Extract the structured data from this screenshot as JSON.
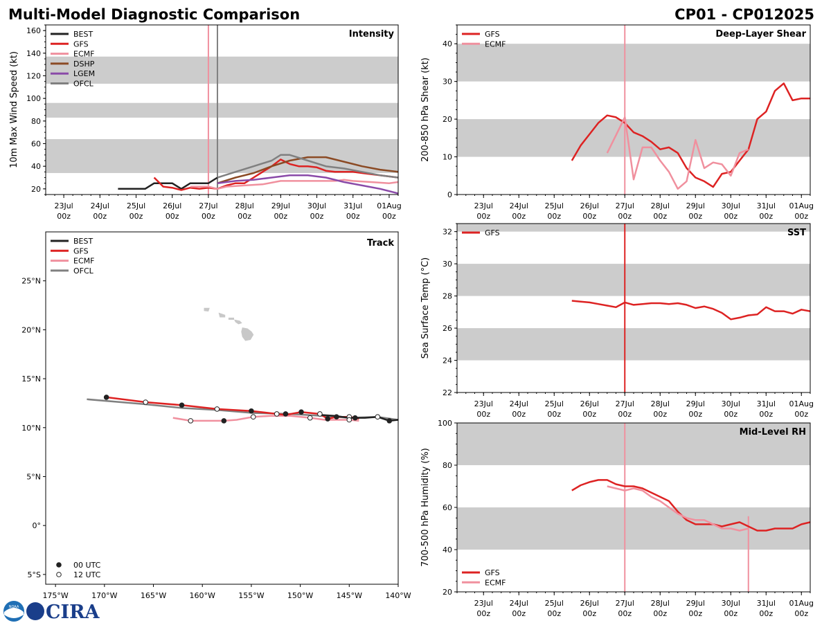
{
  "header": {
    "title": "Multi-Model Diagnostic Comparison",
    "storm_id": "CP01 - CP012025"
  },
  "logos": {
    "noaa": "NOAA",
    "cira": "CIRA"
  },
  "colors": {
    "BEST": "#222222",
    "GFS": "#dd2222",
    "ECMF": "#f0909e",
    "DSHP": "#8b4a24",
    "LGEM": "#8a4aa8",
    "OFCL": "#808080",
    "band": "#cccccc"
  },
  "time_axis": {
    "start": "23Jul 00z",
    "end": "01Aug 00z",
    "ticks": [
      {
        "day": 0,
        "label": "23Jul",
        "sub": "00z"
      },
      {
        "day": 1,
        "label": "24Jul",
        "sub": "00z"
      },
      {
        "day": 2,
        "label": "25Jul",
        "sub": "00z"
      },
      {
        "day": 3,
        "label": "26Jul",
        "sub": "00z"
      },
      {
        "day": 4,
        "label": "27Jul",
        "sub": "00z"
      },
      {
        "day": 5,
        "label": "28Jul",
        "sub": "00z"
      },
      {
        "day": 6,
        "label": "29Jul",
        "sub": "00z"
      },
      {
        "day": 7,
        "label": "30Jul",
        "sub": "00z"
      },
      {
        "day": 8,
        "label": "31Jul",
        "sub": "00z"
      },
      {
        "day": 9,
        "label": "01Aug",
        "sub": "00z"
      }
    ]
  },
  "chart_data": [
    {
      "id": "intensity",
      "type": "line",
      "title": "Intensity",
      "xlabel": "",
      "ylabel": "10m Max Wind Speed (kt)",
      "xlim": [
        -0.5,
        9.25
      ],
      "ylim": [
        15,
        165
      ],
      "yticks": [
        20,
        40,
        60,
        80,
        100,
        120,
        140,
        160
      ],
      "bands": [
        [
          34,
          64
        ],
        [
          83,
          96
        ],
        [
          113,
          137
        ]
      ],
      "vlines": [
        {
          "x": 4.0,
          "color": "ECMF"
        },
        {
          "x": 4.25,
          "color": "OFCL"
        }
      ],
      "legend": [
        "BEST",
        "GFS",
        "ECMF",
        "DSHP",
        "LGEM",
        "OFCL"
      ],
      "series": [
        {
          "name": "BEST",
          "x": [
            1.5,
            2.25,
            2.5,
            3.0,
            3.25,
            3.5,
            4.0,
            4.25
          ],
          "y": [
            20,
            20,
            25,
            25,
            20,
            25,
            25,
            30
          ]
        },
        {
          "name": "GFS",
          "x": [
            2.5,
            2.75,
            3.0,
            3.25,
            3.5,
            3.75,
            4.0,
            4.25,
            4.5,
            4.75,
            5.0,
            5.25,
            5.5,
            5.75,
            6.0,
            6.25,
            6.5,
            6.75,
            7.0,
            7.25,
            7.5,
            7.75,
            8.0,
            8.25,
            8.5,
            8.75,
            9.0,
            9.25
          ],
          "y": [
            30,
            22,
            21,
            19,
            21,
            20,
            21,
            20,
            23,
            25,
            25,
            30,
            35,
            40,
            46,
            42,
            40,
            40,
            39,
            36,
            35,
            35,
            35,
            34,
            33,
            32,
            31,
            30
          ]
        },
        {
          "name": "ECMF",
          "x": [
            3.5,
            4.0,
            4.25,
            4.5,
            5.0,
            5.5,
            6.0,
            6.5,
            7.0,
            7.25,
            7.5,
            7.75,
            8.0,
            8.5,
            9.0,
            9.25
          ],
          "y": [
            22,
            22,
            20,
            22,
            23,
            24,
            27,
            27,
            27,
            27,
            27,
            28,
            27,
            26,
            25,
            26
          ]
        },
        {
          "name": "DSHP",
          "x": [
            4.25,
            4.75,
            5.25,
            5.75,
            6.25,
            6.75,
            7.25,
            7.75,
            8.25,
            8.75,
            9.25
          ],
          "y": [
            25,
            30,
            34,
            40,
            45,
            48,
            48,
            44,
            40,
            37,
            35
          ]
        },
        {
          "name": "LGEM",
          "x": [
            4.25,
            4.75,
            5.25,
            5.75,
            6.25,
            6.75,
            7.25,
            7.75,
            8.25,
            8.75,
            9.25
          ],
          "y": [
            25,
            27,
            28,
            30,
            32,
            32,
            30,
            26,
            23,
            20,
            16
          ]
        },
        {
          "name": "OFCL",
          "x": [
            4.25,
            4.75,
            5.25,
            5.75,
            6.0,
            6.25,
            6.75,
            7.25,
            7.75,
            8.25,
            8.75,
            9.25
          ],
          "y": [
            30,
            35,
            40,
            45,
            50,
            50,
            45,
            40,
            38,
            35,
            32,
            30
          ]
        }
      ]
    },
    {
      "id": "shear",
      "type": "line",
      "title": "Deep-Layer Shear",
      "xlabel": "",
      "ylabel": "200-850 hPa Shear (kt)",
      "xlim": [
        -0.75,
        9.25
      ],
      "ylim": [
        0,
        45
      ],
      "yticks": [
        0,
        10,
        20,
        30,
        40
      ],
      "bands": [
        [
          10,
          20
        ],
        [
          30,
          40
        ]
      ],
      "vlines": [
        {
          "x": 4.0,
          "color": "ECMF"
        }
      ],
      "legend": [
        "GFS",
        "ECMF"
      ],
      "series": [
        {
          "name": "GFS",
          "x": [
            2.5,
            2.75,
            3.0,
            3.25,
            3.5,
            3.75,
            4.0,
            4.25,
            4.5,
            4.75,
            5.0,
            5.25,
            5.5,
            5.75,
            6.0,
            6.25,
            6.5,
            6.75,
            7.0,
            7.25,
            7.5,
            7.75,
            8.0,
            8.25,
            8.5,
            8.75,
            9.0,
            9.25
          ],
          "y": [
            9,
            13,
            16,
            19,
            21,
            20.5,
            19,
            16.5,
            15.5,
            14,
            12,
            12.5,
            11,
            7,
            4.5,
            3.5,
            2,
            5.5,
            6,
            9,
            12,
            20,
            22,
            27.5,
            29.5,
            25,
            25.5,
            25.5
          ]
        },
        {
          "name": "ECMF",
          "x": [
            3.5,
            4.0,
            4.25,
            4.5,
            4.75,
            5.0,
            5.25,
            5.5,
            5.75,
            6.0,
            6.25,
            6.5,
            6.75,
            7.0,
            7.25,
            7.5
          ],
          "y": [
            11,
            20.5,
            4,
            12.5,
            12.5,
            9,
            6,
            1.5,
            3.5,
            14.5,
            7,
            8.5,
            8,
            5,
            11,
            12
          ]
        }
      ]
    },
    {
      "id": "track",
      "type": "scatter",
      "title": "Track",
      "xlabel": "",
      "ylabel": "",
      "xlim": [
        -176,
        -140
      ],
      "ylim": [
        -6,
        30
      ],
      "xticks": [
        {
          "v": -175,
          "label": "175°W"
        },
        {
          "v": -170,
          "label": "170°W"
        },
        {
          "v": -165,
          "label": "165°W"
        },
        {
          "v": -160,
          "label": "160°W"
        },
        {
          "v": -155,
          "label": "155°W"
        },
        {
          "v": -150,
          "label": "150°W"
        },
        {
          "v": -145,
          "label": "145°W"
        },
        {
          "v": -140,
          "label": "140°W"
        }
      ],
      "yticks": [
        {
          "v": -5,
          "label": "5°S"
        },
        {
          "v": 0,
          "label": "0°"
        },
        {
          "v": 5,
          "label": "5°N"
        },
        {
          "v": 10,
          "label": "10°N"
        },
        {
          "v": 15,
          "label": "15°N"
        },
        {
          "v": 20,
          "label": "20°N"
        },
        {
          "v": 25,
          "label": "25°N"
        }
      ],
      "legend": [
        "BEST",
        "GFS",
        "ECMF",
        "OFCL"
      ],
      "marker_legend": [
        "00 UTC",
        "12 UTC"
      ],
      "series": [
        {
          "name": "BEST",
          "lon": [
            -140,
            -140.9,
            -142.1,
            -143.4,
            -145.0,
            -146.5,
            -148.0
          ],
          "lat": [
            10.8,
            10.7,
            11.1,
            11.0,
            11.0,
            11.2,
            11.3
          ]
        },
        {
          "name": "GFS",
          "lon": [
            -144.0,
            -144.4,
            -145.0,
            -146.3,
            -147.2,
            -148.0,
            -149.9,
            -151.5,
            -152.4,
            -155.0,
            -158.5,
            -162.1,
            -165.8,
            -169.8
          ],
          "lat": [
            10.9,
            11.0,
            11.1,
            11.1,
            10.9,
            11.4,
            11.6,
            11.3,
            11.4,
            11.7,
            11.9,
            12.3,
            12.6,
            13.1
          ]
        },
        {
          "name": "ECMF",
          "lon": [
            -144.0,
            -145.0,
            -146.3,
            -147.5,
            -149.0,
            -151.0,
            -153.0,
            -154.8,
            -156.5,
            -157.8,
            -159.5,
            -161.2,
            -163.0
          ],
          "lat": [
            10.7,
            10.8,
            10.8,
            10.8,
            11.0,
            11.2,
            11.2,
            11.1,
            10.8,
            10.7,
            10.7,
            10.7,
            11.0
          ]
        },
        {
          "name": "OFCL",
          "lon": [
            -140,
            -142.1,
            -145.0,
            -147.8,
            -151.0,
            -154.8,
            -158.5,
            -162.0,
            -166.0,
            -171.8
          ],
          "lat": [
            10.8,
            11.1,
            11.0,
            11.2,
            11.4,
            11.5,
            11.8,
            12.0,
            12.4,
            12.9
          ]
        }
      ],
      "markers": [
        {
          "lon": -169.8,
          "lat": 13.1,
          "type": "00 UTC"
        },
        {
          "lon": -165.8,
          "lat": 12.6,
          "type": "12 UTC"
        },
        {
          "lon": -162.1,
          "lat": 12.3,
          "type": "00 UTC"
        },
        {
          "lon": -158.5,
          "lat": 11.9,
          "type": "12 UTC"
        },
        {
          "lon": -155.0,
          "lat": 11.7,
          "type": "00 UTC"
        },
        {
          "lon": -152.4,
          "lat": 11.4,
          "type": "12 UTC"
        },
        {
          "lon": -151.5,
          "lat": 11.4,
          "type": "00 UTC"
        },
        {
          "lon": -149.9,
          "lat": 11.6,
          "type": "00 UTC"
        },
        {
          "lon": -148.0,
          "lat": 11.4,
          "type": "12 UTC"
        },
        {
          "lon": -146.3,
          "lat": 11.1,
          "type": "00 UTC"
        },
        {
          "lon": -145.0,
          "lat": 11.1,
          "type": "12 UTC"
        },
        {
          "lon": -144.4,
          "lat": 11.0,
          "type": "00 UTC"
        },
        {
          "lon": -142.1,
          "lat": 11.1,
          "type": "12 UTC"
        },
        {
          "lon": -140.9,
          "lat": 10.7,
          "type": "00 UTC"
        },
        {
          "lon": -161.2,
          "lat": 10.7,
          "type": "12 UTC"
        },
        {
          "lon": -157.8,
          "lat": 10.7,
          "type": "00 UTC"
        },
        {
          "lon": -154.8,
          "lat": 11.1,
          "type": "12 UTC"
        },
        {
          "lon": -149.0,
          "lat": 11.0,
          "type": "12 UTC"
        },
        {
          "lon": -147.2,
          "lat": 10.9,
          "type": "00 UTC"
        },
        {
          "lon": -145.0,
          "lat": 10.8,
          "type": "12 UTC"
        }
      ],
      "land": [
        {
          "name": "Hawaii",
          "lon": [
            -155.9,
            -155.4,
            -155.0,
            -154.8,
            -155.1,
            -155.6,
            -155.9,
            -156.0
          ],
          "lat": [
            20.2,
            20.1,
            19.8,
            19.5,
            19.0,
            18.9,
            19.3,
            19.8
          ]
        },
        {
          "name": "Maui",
          "lon": [
            -156.7,
            -156.2,
            -156.0,
            -156.3,
            -156.6
          ],
          "lat": [
            21.0,
            20.9,
            20.7,
            20.6,
            20.8
          ]
        },
        {
          "name": "Molokai",
          "lon": [
            -157.3,
            -156.8,
            -156.8,
            -157.3
          ],
          "lat": [
            21.2,
            21.2,
            21.05,
            21.05
          ]
        },
        {
          "name": "Oahu",
          "lon": [
            -158.3,
            -157.7,
            -157.7,
            -158.2
          ],
          "lat": [
            21.7,
            21.5,
            21.3,
            21.3
          ]
        },
        {
          "name": "Kauai",
          "lon": [
            -159.8,
            -159.3,
            -159.4,
            -159.8
          ],
          "lat": [
            22.2,
            22.2,
            21.9,
            21.95
          ]
        }
      ]
    },
    {
      "id": "sst",
      "type": "line",
      "title": "SST",
      "xlabel": "",
      "ylabel": "Sea Surface Temp (°C)",
      "xlim": [
        -0.75,
        9.25
      ],
      "ylim": [
        22,
        32.5
      ],
      "yticks": [
        22,
        24,
        26,
        28,
        30,
        32
      ],
      "bands": [
        [
          24,
          26
        ],
        [
          28,
          30
        ],
        [
          32,
          34
        ]
      ],
      "vlines": [
        {
          "x": 4.0,
          "color": "GFS"
        }
      ],
      "legend": [
        "GFS"
      ],
      "series": [
        {
          "name": "GFS",
          "x": [
            2.5,
            2.75,
            3.0,
            3.25,
            3.5,
            3.75,
            4.0,
            4.25,
            4.5,
            4.75,
            5.0,
            5.25,
            5.5,
            5.75,
            6.0,
            6.25,
            6.5,
            6.75,
            7.0,
            7.25,
            7.5,
            7.75,
            8.0,
            8.25,
            8.5,
            8.75,
            9.0,
            9.25
          ],
          "y": [
            27.7,
            27.65,
            27.6,
            27.5,
            27.4,
            27.3,
            27.6,
            27.45,
            27.5,
            27.55,
            27.55,
            27.5,
            27.55,
            27.45,
            27.25,
            27.35,
            27.2,
            26.95,
            26.55,
            26.65,
            26.8,
            26.85,
            27.3,
            27.05,
            27.05,
            26.9,
            27.15,
            27.05
          ]
        }
      ]
    },
    {
      "id": "rh",
      "type": "line",
      "title": "Mid-Level RH",
      "xlabel": "",
      "ylabel": "700-500 hPa Humidity (%)",
      "xlim": [
        -0.75,
        9.25
      ],
      "ylim": [
        20,
        100
      ],
      "yticks": [
        20,
        40,
        60,
        80,
        100
      ],
      "bands": [
        [
          40,
          60
        ],
        [
          80,
          100
        ]
      ],
      "vlines": [
        {
          "x": 4.0,
          "color": "ECMF"
        },
        {
          "x": 7.5,
          "color": "ECMF",
          "bottom_only": true
        }
      ],
      "legend": [
        "GFS",
        "ECMF"
      ],
      "series": [
        {
          "name": "GFS",
          "x": [
            2.5,
            2.75,
            3.0,
            3.25,
            3.5,
            3.75,
            4.0,
            4.25,
            4.5,
            4.75,
            5.0,
            5.25,
            5.5,
            5.75,
            6.0,
            6.25,
            6.5,
            6.75,
            7.0,
            7.25,
            7.5,
            7.75,
            8.0,
            8.25,
            8.5,
            8.75,
            9.0,
            9.25
          ],
          "y": [
            68,
            70.5,
            72,
            73,
            73,
            71,
            70,
            70,
            69,
            67,
            65,
            63,
            58,
            54,
            52,
            52,
            52,
            51,
            52,
            53,
            51,
            49,
            49,
            50,
            50,
            50,
            52,
            53
          ]
        },
        {
          "name": "ECMF",
          "x": [
            3.5,
            4.0,
            4.25,
            4.5,
            4.75,
            5.0,
            5.25,
            5.5,
            5.75,
            6.0,
            6.25,
            6.5,
            6.75,
            7.0,
            7.25,
            7.5
          ],
          "y": [
            70,
            68,
            69,
            68,
            65,
            63,
            60,
            57,
            55,
            54,
            54,
            52,
            50,
            50,
            49,
            50
          ]
        }
      ]
    }
  ]
}
